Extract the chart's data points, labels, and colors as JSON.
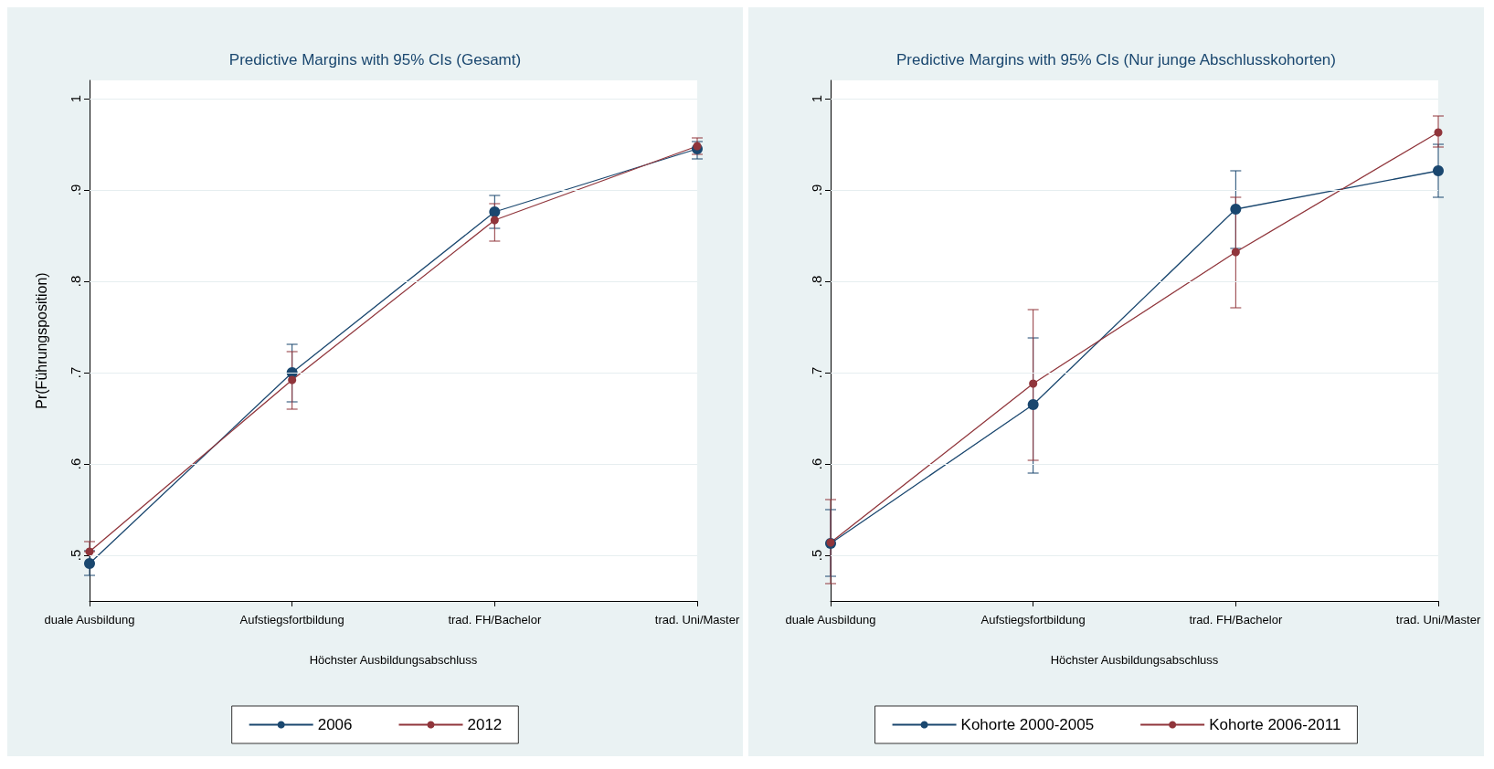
{
  "chart_data": [
    {
      "type": "line",
      "title": "Predictive Margins with 95% CIs (Gesamt)",
      "xlabel": "Höchster Ausbildungsabschluss",
      "ylabel": "Pr(Führungsposition)",
      "categories": [
        "duale Ausbildung",
        "Aufstiegsfortbildung",
        "trad. FH/Bachelor",
        "trad. Uni/Master"
      ],
      "ylim": [
        0.45,
        1.02
      ],
      "yticks": [
        {
          "value": 0.5,
          "label": ".5"
        },
        {
          "value": 0.6,
          "label": ".6"
        },
        {
          "value": 0.7,
          "label": ".7"
        },
        {
          "value": 0.8,
          "label": ".8"
        },
        {
          "value": 0.9,
          "label": ".9"
        },
        {
          "value": 1,
          "label": "1"
        }
      ],
      "grid": "y",
      "legend": "bottom",
      "marker": "circle",
      "series": [
        {
          "name": "2006",
          "color": "#1a476f",
          "values": [
            0.491,
            0.7,
            0.876,
            0.945
          ],
          "errors": [
            [
              0.478,
              0.505
            ],
            [
              0.668,
              0.731
            ],
            [
              0.858,
              0.894
            ],
            [
              0.934,
              0.953
            ]
          ]
        },
        {
          "name": "2012",
          "color": "#90353b",
          "values": [
            0.504,
            0.692,
            0.867,
            0.948
          ],
          "errors": [
            [
              0.504,
              0.515
            ],
            [
              0.66,
              0.723
            ],
            [
              0.844,
              0.885
            ],
            [
              0.939,
              0.957
            ]
          ]
        }
      ]
    },
    {
      "type": "line",
      "title": "Predictive Margins with 95% CIs (Nur junge Abschlusskohorten)",
      "xlabel": "Höchster Ausbildungsabschluss",
      "categories": [
        "duale Ausbildung",
        "Aufstiegsfortbildung",
        "trad. FH/Bachelor",
        "trad. Uni/Master"
      ],
      "ylim": [
        0.45,
        1.02
      ],
      "yticks": [
        {
          "value": 0.5,
          "label": ".5"
        },
        {
          "value": 0.6,
          "label": ".6"
        },
        {
          "value": 0.7,
          "label": ".7"
        },
        {
          "value": 0.8,
          "label": ".8"
        },
        {
          "value": 0.9,
          "label": ".9"
        },
        {
          "value": 1,
          "label": "1"
        }
      ],
      "grid": "y",
      "legend": "bottom",
      "marker": "circle",
      "series": [
        {
          "name": "Kohorte 2000-2005",
          "color": "#1a476f",
          "values": [
            0.513,
            0.665,
            0.879,
            0.921
          ],
          "errors": [
            [
              0.477,
              0.55
            ],
            [
              0.59,
              0.738
            ],
            [
              0.836,
              0.921
            ],
            [
              0.892,
              0.95
            ]
          ]
        },
        {
          "name": "Kohorte 2006-2011",
          "color": "#90353b",
          "values": [
            0.514,
            0.688,
            0.832,
            0.963
          ],
          "errors": [
            [
              0.469,
              0.561
            ],
            [
              0.604,
              0.769
            ],
            [
              0.771,
              0.892
            ],
            [
              0.947,
              0.981
            ]
          ]
        }
      ]
    }
  ]
}
